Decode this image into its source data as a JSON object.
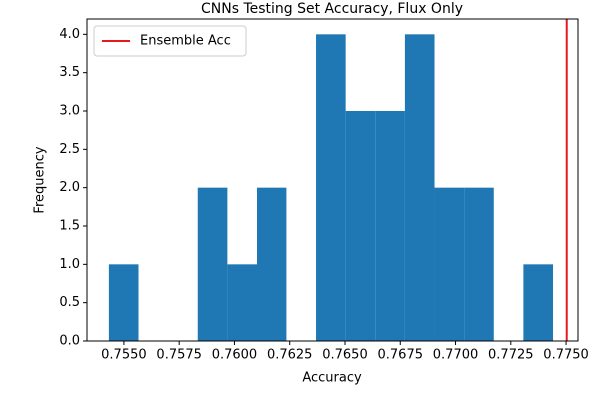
{
  "chart_data": {
    "type": "histogram",
    "title": "CNNs Testing Set Accuracy, Flux Only",
    "x_label": "Accuracy",
    "y_label": "Frequency",
    "bins": [
      0.75432,
      0.75566,
      0.757,
      0.75834,
      0.75968,
      0.76102,
      0.76235,
      0.76369,
      0.76503,
      0.76637,
      0.76771,
      0.76905,
      0.77039,
      0.77173,
      0.77307,
      0.77441
    ],
    "counts": [
      1,
      0,
      0,
      2,
      1,
      2,
      0,
      4,
      3,
      3,
      4,
      2,
      2,
      0,
      1
    ],
    "color": "#1f77b4",
    "vlines": [
      {
        "name": "Ensemble Acc",
        "x": 0.77503,
        "color": "#e41a1c"
      }
    ],
    "legend": "upper left",
    "xlim": [
      0.75333,
      0.77554
    ],
    "xticks": [
      {
        "value": 0.755,
        "label": "0.7550"
      },
      {
        "value": 0.7575,
        "label": "0.7575"
      },
      {
        "value": 0.76,
        "label": "0.7600"
      },
      {
        "value": 0.7625,
        "label": "0.7625"
      },
      {
        "value": 0.765,
        "label": "0.7650"
      },
      {
        "value": 0.7675,
        "label": "0.7675"
      },
      {
        "value": 0.77,
        "label": "0.7700"
      },
      {
        "value": 0.7725,
        "label": "0.7725"
      },
      {
        "value": 0.775,
        "label": "0.7750"
      }
    ],
    "ylim": [
      0,
      4.2
    ],
    "yticks": [
      {
        "value": 0,
        "label": "0.0"
      },
      {
        "value": 0.5,
        "label": "0.5"
      },
      {
        "value": 1,
        "label": "1.0"
      },
      {
        "value": 1.5,
        "label": "1.5"
      },
      {
        "value": 2,
        "label": "2.0"
      },
      {
        "value": 2.5,
        "label": "2.5"
      },
      {
        "value": 3,
        "label": "3.0"
      },
      {
        "value": 3.5,
        "label": "3.5"
      },
      {
        "value": 4,
        "label": "4.0"
      }
    ]
  }
}
